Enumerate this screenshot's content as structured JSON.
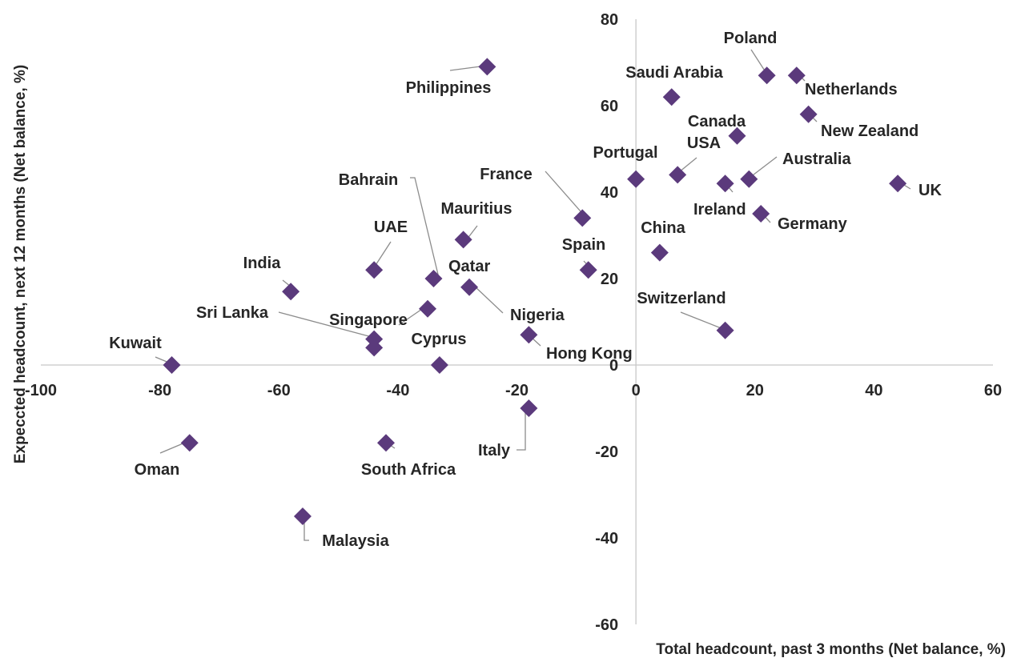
{
  "chart_data": {
    "type": "scatter",
    "title": "",
    "xlabel": "Total headcount, past 3 months (Net balance, %)",
    "ylabel": "Expeccted headcount, next 12 months (Net balance, %)",
    "xlim": [
      -100,
      60
    ],
    "ylim": [
      -60,
      80
    ],
    "xticks": [
      -100,
      -80,
      -60,
      -40,
      -20,
      0,
      20,
      40,
      60
    ],
    "yticks": [
      -60,
      -40,
      -20,
      0,
      20,
      40,
      60,
      80
    ],
    "grid": false,
    "marker": "diamond",
    "marker_color": "#5b3a7c",
    "points": [
      {
        "label": "Philippines",
        "x": -25,
        "y": 69
      },
      {
        "label": "Poland",
        "x": 22,
        "y": 67
      },
      {
        "label": "Netherlands",
        "x": 27,
        "y": 67
      },
      {
        "label": "Saudi Arabia",
        "x": 6,
        "y": 62
      },
      {
        "label": "New Zealand",
        "x": 29,
        "y": 58
      },
      {
        "label": "Canada",
        "x": 17,
        "y": 53
      },
      {
        "label": "USA",
        "x": 7,
        "y": 44
      },
      {
        "label": "Portugal",
        "x": 0,
        "y": 43
      },
      {
        "label": "Australia",
        "x": 19,
        "y": 43
      },
      {
        "label": "Ireland",
        "x": 15,
        "y": 42
      },
      {
        "label": "UK",
        "x": 44,
        "y": 42
      },
      {
        "label": "Germany",
        "x": 21,
        "y": 35
      },
      {
        "label": "France",
        "x": -9,
        "y": 34
      },
      {
        "label": "Mauritius",
        "x": -29,
        "y": 29
      },
      {
        "label": "China",
        "x": 4,
        "y": 26
      },
      {
        "label": "UAE",
        "x": -44,
        "y": 22
      },
      {
        "label": "Spain",
        "x": -8,
        "y": 22
      },
      {
        "label": "Bahrain",
        "x": -34,
        "y": 20
      },
      {
        "label": "Qatar",
        "x": -28,
        "y": 18
      },
      {
        "label": "India",
        "x": -58,
        "y": 17
      },
      {
        "label": "Sri Lanka",
        "x": -35,
        "y": 13
      },
      {
        "label": "Switzerland",
        "x": 15,
        "y": 8
      },
      {
        "label": "Nigeria",
        "x": -18,
        "y": 7
      },
      {
        "label": "Singapore",
        "x": -44,
        "y": 6
      },
      {
        "label": "Hong Kong",
        "x": -44,
        "y": 4
      },
      {
        "label": "Cyprus",
        "x": -33,
        "y": 0
      },
      {
        "label": "Kuwait",
        "x": -78,
        "y": 0
      },
      {
        "label": "Italy",
        "x": -18,
        "y": -10
      },
      {
        "label": "Oman",
        "x": -75,
        "y": -18
      },
      {
        "label": "South Africa",
        "x": -42,
        "y": -18
      },
      {
        "label": "Malaysia",
        "x": -56,
        "y": -35
      }
    ]
  }
}
